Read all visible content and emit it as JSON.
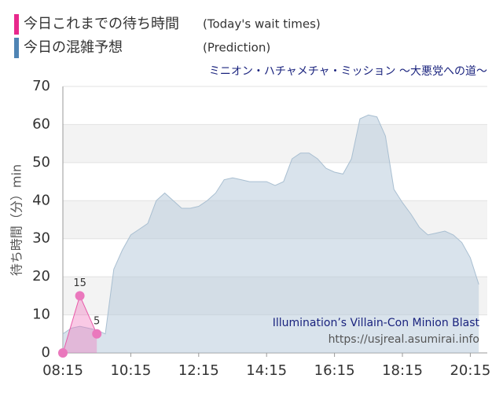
{
  "chart_data": {
    "type": "area",
    "title": "ミニオン・ハチャメチャ・ミッション ～大悪党への道～",
    "legend": [
      {
        "label": "今日これまでの待ち時間",
        "note": "(Today's wait times)",
        "color": "#e8288c"
      },
      {
        "label": "今日の混雑予想",
        "note": "(Prediction)",
        "color": "#4f84b4"
      }
    ],
    "ylabel": "待ち時間（分）min",
    "watermark": [
      "Illumination’s Villain-Con Minion Blast",
      "https://usjreal.asumirai.info"
    ],
    "xlim": [
      "08:15",
      "20:45"
    ],
    "xticks": [
      "08:15",
      "10:15",
      "12:15",
      "14:15",
      "16:15",
      "18:15",
      "20:15"
    ],
    "ylim": [
      0,
      70
    ],
    "yticks": [
      0,
      10,
      20,
      30,
      40,
      50,
      60,
      70
    ],
    "grid": true,
    "series": [
      {
        "name": "今日の混雑予想",
        "color": "#a9bfd1",
        "x": [
          "08:15",
          "08:30",
          "08:45",
          "09:00",
          "09:15",
          "09:30",
          "09:45",
          "10:00",
          "10:15",
          "10:30",
          "10:45",
          "11:00",
          "11:15",
          "11:30",
          "11:45",
          "12:00",
          "12:15",
          "12:30",
          "12:45",
          "13:00",
          "13:15",
          "13:30",
          "13:45",
          "14:00",
          "14:15",
          "14:30",
          "14:45",
          "15:00",
          "15:15",
          "15:30",
          "15:45",
          "16:00",
          "16:15",
          "16:30",
          "16:45",
          "17:00",
          "17:15",
          "17:30",
          "17:45",
          "18:00",
          "18:15",
          "18:30",
          "18:45",
          "19:00",
          "19:15",
          "19:30",
          "19:45",
          "20:00",
          "20:15",
          "20:30"
        ],
        "values": [
          5,
          6.5,
          7,
          6.5,
          6,
          5,
          22,
          27,
          31,
          32.5,
          34,
          40,
          42,
          40,
          38,
          38,
          38.5,
          40,
          42,
          45.5,
          46,
          45.5,
          45,
          45,
          45,
          44,
          45,
          51,
          52.5,
          52.5,
          51,
          48.5,
          47.5,
          47,
          51,
          61.5,
          62.5,
          62,
          57,
          43,
          39.5,
          36.5,
          33,
          31,
          31.5,
          32,
          31,
          29,
          25,
          18
        ]
      },
      {
        "name": "今日これまでの待ち時間",
        "color": "#e85aa8",
        "x": [
          "08:15",
          "08:45",
          "09:15"
        ],
        "values": [
          0,
          15,
          5
        ]
      }
    ]
  }
}
